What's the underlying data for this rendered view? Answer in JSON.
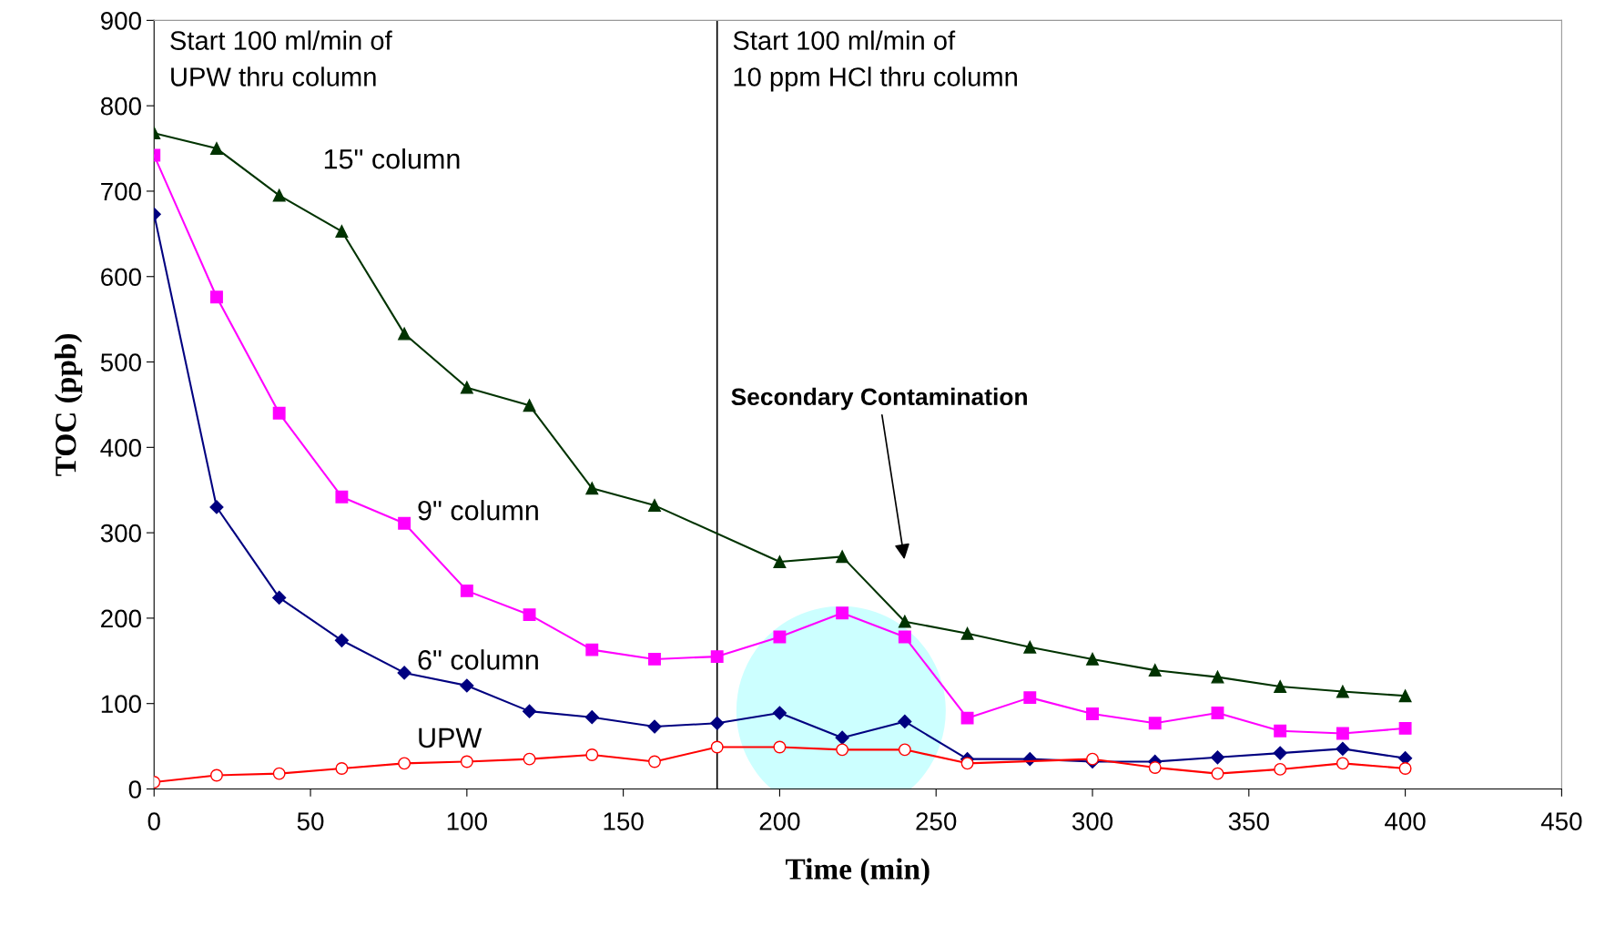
{
  "chart_data": {
    "type": "line",
    "xlabel": "Time (min)",
    "ylabel": "TOC (ppb)",
    "xlim": [
      0,
      450
    ],
    "xticks": [
      0,
      50,
      100,
      150,
      200,
      250,
      300,
      350,
      400,
      450
    ],
    "ylim": [
      0,
      900
    ],
    "yticks": [
      0,
      100,
      200,
      300,
      400,
      500,
      600,
      700,
      800,
      900
    ],
    "grid": false,
    "legend": false,
    "series": [
      {
        "name": "15\" column",
        "color": "#003300",
        "marker": "triangle",
        "x": [
          0,
          20,
          40,
          60,
          80,
          100,
          120,
          140,
          160,
          200,
          220,
          240,
          260,
          280,
          300,
          320,
          340,
          360,
          380,
          400
        ],
        "values": [
          768,
          750,
          695,
          653,
          533,
          470,
          449,
          352,
          332,
          266,
          272,
          196,
          182,
          166,
          152,
          139,
          131,
          120,
          114,
          109
        ]
      },
      {
        "name": "9\" column",
        "color": "#ff00ff",
        "marker": "square",
        "x": [
          0,
          20,
          40,
          60,
          80,
          100,
          120,
          140,
          160,
          180,
          200,
          220,
          240,
          260,
          280,
          300,
          320,
          340,
          360,
          380,
          400
        ],
        "values": [
          742,
          576,
          440,
          342,
          311,
          232,
          204,
          163,
          152,
          155,
          178,
          206,
          178,
          83,
          107,
          88,
          77,
          89,
          68,
          65,
          71
        ]
      },
      {
        "name": "6\" column",
        "color": "#000080",
        "marker": "diamond",
        "x": [
          0,
          20,
          40,
          60,
          80,
          100,
          120,
          140,
          160,
          180,
          200,
          220,
          240,
          260,
          280,
          300,
          320,
          340,
          360,
          380,
          400
        ],
        "values": [
          673,
          330,
          224,
          174,
          136,
          121,
          91,
          84,
          73,
          77,
          89,
          60,
          79,
          35,
          35,
          32,
          32,
          37,
          42,
          47,
          36
        ]
      },
      {
        "name": "UPW",
        "color": "#ff0000",
        "marker": "circle",
        "x": [
          0,
          20,
          40,
          60,
          80,
          100,
          120,
          140,
          160,
          180,
          200,
          220,
          240,
          260,
          300,
          320,
          340,
          360,
          380,
          400
        ],
        "values": [
          8,
          16,
          18,
          24,
          30,
          32,
          35,
          40,
          32,
          49,
          49,
          46,
          46,
          30,
          35,
          25,
          18,
          23,
          30,
          24
        ]
      }
    ],
    "ref_lines": [
      {
        "axis": "x",
        "value": 180,
        "color": "#000000"
      }
    ],
    "annotations": [
      "Start 100 ml/min of\nUPW thru column",
      "Start 100 ml/min of\n10 ppm HCl thru column",
      "Secondary Contamination"
    ]
  }
}
